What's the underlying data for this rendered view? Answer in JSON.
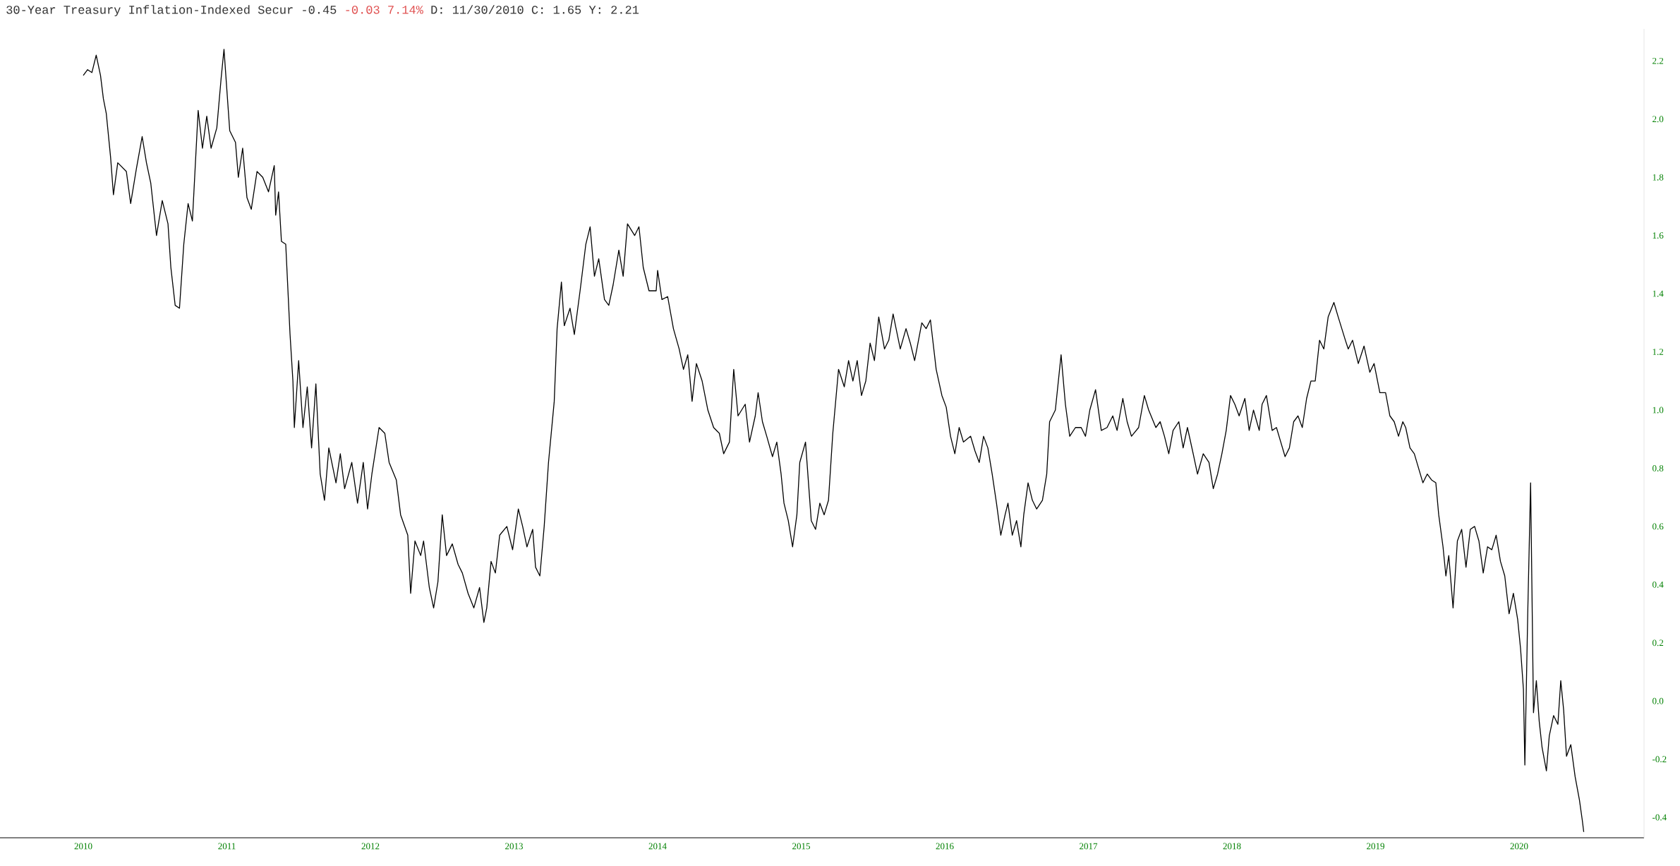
{
  "chart_data": {
    "type": "line",
    "title": "30-Year Treasury Inflation-Indexed Secur -0.45",
    "subtitle": "-0.03 7.14%",
    "annotations": [
      "D: 11/30/2010 C: 1.65 Y: 2.21"
    ],
    "xlim": [
      2009.42,
      2020.87
    ],
    "ylim": [
      -0.47,
      2.31
    ],
    "xticks": [
      2010,
      2011,
      2012,
      2013,
      2014,
      2015,
      2016,
      2017,
      2018,
      2019,
      2020
    ],
    "yticks": [
      -0.4,
      -0.2,
      {
        "value": 0,
        "label": "0.0"
      },
      0.2,
      0.4,
      0.6,
      0.8,
      {
        "value": 1,
        "label": "1.0"
      },
      1.2,
      1.4,
      1.6,
      1.8,
      {
        "value": 2,
        "label": "2.0"
      },
      2.2
    ],
    "series": [
      {
        "color": "#000000",
        "x": [
          2010.0,
          2010.03,
          2010.06,
          2010.09,
          2010.12,
          2010.14,
          2010.16,
          2010.19,
          2010.21,
          2010.24,
          2010.3,
          2010.33,
          2010.37,
          2010.41,
          2010.44,
          2010.47,
          2010.51,
          2010.55,
          2010.59,
          2010.61,
          2010.64,
          2010.67,
          2010.7,
          2010.73,
          2010.76,
          2010.8,
          2010.83,
          2010.86,
          2010.89,
          2010.93,
          2010.96,
          2010.98,
          2011.0,
          2011.02,
          2011.06,
          2011.08,
          2011.11,
          2011.14,
          2011.17,
          2011.21,
          2011.25,
          2011.29,
          2011.33,
          2011.34,
          2011.36,
          2011.38,
          2011.41,
          2011.44,
          2011.46,
          2011.47,
          2011.5,
          2011.53,
          2011.56,
          2011.59,
          2011.62,
          2011.65,
          2011.68,
          2011.71,
          2011.76,
          2011.79,
          2011.82,
          2011.87,
          2011.91,
          2011.95,
          2011.98,
          2012.01,
          2012.06,
          2012.1,
          2012.13,
          2012.18,
          2012.21,
          2012.26,
          2012.28,
          2012.31,
          2012.35,
          2012.37,
          2012.41,
          2012.44,
          2012.47,
          2012.5,
          2012.53,
          2012.57,
          2012.61,
          2012.64,
          2012.68,
          2012.72,
          2012.76,
          2012.79,
          2012.81,
          2012.84,
          2012.87,
          2012.9,
          2012.95,
          2012.99,
          2013.03,
          2013.06,
          2013.09,
          2013.13,
          2013.15,
          2013.18,
          2013.21,
          2013.24,
          2013.28,
          2013.3,
          2013.33,
          2013.35,
          2013.39,
          2013.42,
          2013.46,
          2013.5,
          2013.53,
          2013.56,
          2013.59,
          2013.63,
          2013.66,
          2013.69,
          2013.73,
          2013.76,
          2013.79,
          2013.84,
          2013.87,
          2013.9,
          2013.94,
          2013.99,
          2014.0,
          2014.03,
          2014.07,
          2014.11,
          2014.15,
          2014.18,
          2014.21,
          2014.24,
          2014.27,
          2014.31,
          2014.35,
          2014.39,
          2014.43,
          2014.46,
          2014.5,
          2014.53,
          2014.56,
          2014.61,
          2014.64,
          2014.68,
          2014.7,
          2014.73,
          2014.76,
          2014.8,
          2014.83,
          2014.86,
          2014.88,
          2014.91,
          2014.94,
          2014.97,
          2014.99,
          2015.03,
          2015.07,
          2015.1,
          2015.13,
          2015.16,
          2015.19,
          2015.22,
          2015.26,
          2015.3,
          2015.33,
          2015.36,
          2015.39,
          2015.42,
          2015.45,
          2015.48,
          2015.51,
          2015.54,
          2015.58,
          2015.61,
          2015.64,
          2015.69,
          2015.73,
          2015.76,
          2015.79,
          2015.84,
          2015.87,
          2015.9,
          2015.94,
          2015.98,
          2016.01,
          2016.04,
          2016.07,
          2016.1,
          2016.13,
          2016.18,
          2016.21,
          2016.24,
          2016.27,
          2016.3,
          2016.33,
          2016.36,
          2016.39,
          2016.42,
          2016.44,
          2016.47,
          2016.5,
          2016.53,
          2016.55,
          2016.58,
          2016.61,
          2016.64,
          2016.68,
          2016.71,
          2016.73,
          2016.77,
          2016.81,
          2016.84,
          2016.87,
          2016.91,
          2016.95,
          2016.98,
          2017.01,
          2017.05,
          2017.09,
          2017.13,
          2017.17,
          2017.2,
          2017.24,
          2017.27,
          2017.3,
          2017.35,
          2017.39,
          2017.42,
          2017.47,
          2017.5,
          2017.53,
          2017.56,
          2017.59,
          2017.63,
          2017.66,
          2017.69,
          2017.73,
          2017.76,
          2017.8,
          2017.84,
          2017.87,
          2017.9,
          2017.93,
          2017.96,
          2017.99,
          2018.02,
          2018.05,
          2018.09,
          2018.12,
          2018.15,
          2018.19,
          2018.21,
          2018.24,
          2018.28,
          2018.31,
          2018.34,
          2018.37,
          2018.4,
          2018.43,
          2018.46,
          2018.49,
          2018.52,
          2018.55,
          2018.58,
          2018.61,
          2018.64,
          2018.67,
          2018.71,
          2018.74,
          2018.79,
          2018.81,
          2018.84,
          2018.88,
          2018.92,
          2018.96,
          2018.99,
          2019.03,
          2019.07,
          2019.1,
          2019.13,
          2019.16,
          2019.19,
          2019.21,
          2019.24,
          2019.27,
          2019.3,
          2019.33,
          2019.36,
          2019.39,
          2019.42,
          2019.44,
          2019.47,
          2019.49,
          2019.51,
          2019.54,
          2019.57,
          2019.6,
          2019.63,
          2019.66,
          2019.69,
          2019.72,
          2019.75,
          2019.78,
          2019.81,
          2019.84,
          2019.87,
          2019.9,
          2019.93,
          2019.96,
          2019.99,
          2020.01,
          2020.03,
          2020.04,
          2020.06,
          2020.08,
          2020.1,
          2020.12,
          2020.14,
          2020.16,
          2020.19,
          2020.21,
          2020.24,
          2020.27,
          2020.29,
          2020.31,
          2020.33,
          2020.36,
          2020.39,
          2020.42,
          2020.44,
          2020.45
        ],
        "values": [
          2.15,
          2.17,
          2.16,
          2.22,
          2.15,
          2.07,
          2.02,
          1.87,
          1.74,
          1.85,
          1.82,
          1.71,
          1.83,
          1.94,
          1.85,
          1.78,
          1.6,
          1.72,
          1.64,
          1.49,
          1.36,
          1.35,
          1.57,
          1.71,
          1.65,
          2.03,
          1.9,
          2.01,
          1.9,
          1.97,
          2.14,
          2.24,
          2.1,
          1.96,
          1.92,
          1.8,
          1.9,
          1.73,
          1.69,
          1.82,
          1.8,
          1.75,
          1.84,
          1.67,
          1.75,
          1.58,
          1.57,
          1.26,
          1.1,
          0.94,
          1.17,
          0.94,
          1.08,
          0.87,
          1.09,
          0.78,
          0.69,
          0.87,
          0.75,
          0.85,
          0.73,
          0.82,
          0.68,
          0.82,
          0.66,
          0.78,
          0.94,
          0.92,
          0.82,
          0.76,
          0.64,
          0.57,
          0.37,
          0.55,
          0.5,
          0.55,
          0.39,
          0.32,
          0.41,
          0.64,
          0.5,
          0.54,
          0.47,
          0.44,
          0.37,
          0.32,
          0.39,
          0.27,
          0.32,
          0.48,
          0.44,
          0.57,
          0.6,
          0.52,
          0.66,
          0.6,
          0.53,
          0.59,
          0.46,
          0.43,
          0.6,
          0.82,
          1.03,
          1.28,
          1.44,
          1.29,
          1.35,
          1.26,
          1.41,
          1.57,
          1.63,
          1.46,
          1.52,
          1.38,
          1.36,
          1.43,
          1.55,
          1.46,
          1.64,
          1.6,
          1.63,
          1.49,
          1.41,
          1.41,
          1.48,
          1.38,
          1.39,
          1.28,
          1.21,
          1.14,
          1.19,
          1.03,
          1.16,
          1.1,
          1.0,
          0.94,
          0.92,
          0.85,
          0.89,
          1.14,
          0.98,
          1.02,
          0.89,
          0.98,
          1.06,
          0.96,
          0.91,
          0.84,
          0.89,
          0.78,
          0.68,
          0.62,
          0.53,
          0.64,
          0.82,
          0.89,
          0.62,
          0.59,
          0.68,
          0.64,
          0.69,
          0.92,
          1.14,
          1.08,
          1.17,
          1.1,
          1.17,
          1.05,
          1.1,
          1.23,
          1.17,
          1.32,
          1.21,
          1.24,
          1.33,
          1.21,
          1.28,
          1.23,
          1.17,
          1.3,
          1.28,
          1.31,
          1.14,
          1.05,
          1.01,
          0.91,
          0.85,
          0.94,
          0.89,
          0.91,
          0.86,
          0.82,
          0.91,
          0.87,
          0.78,
          0.68,
          0.57,
          0.64,
          0.68,
          0.57,
          0.62,
          0.53,
          0.64,
          0.75,
          0.69,
          0.66,
          0.69,
          0.78,
          0.96,
          1.0,
          1.19,
          1.02,
          0.91,
          0.94,
          0.94,
          0.91,
          1.0,
          1.07,
          0.93,
          0.94,
          0.98,
          0.93,
          1.04,
          0.96,
          0.91,
          0.94,
          1.05,
          1.0,
          0.94,
          0.96,
          0.91,
          0.85,
          0.93,
          0.96,
          0.87,
          0.94,
          0.85,
          0.78,
          0.85,
          0.82,
          0.73,
          0.78,
          0.85,
          0.93,
          1.05,
          1.02,
          0.98,
          1.04,
          0.93,
          1.0,
          0.93,
          1.02,
          1.05,
          0.93,
          0.94,
          0.89,
          0.84,
          0.87,
          0.96,
          0.98,
          0.94,
          1.04,
          1.1,
          1.1,
          1.24,
          1.21,
          1.32,
          1.37,
          1.32,
          1.24,
          1.21,
          1.24,
          1.16,
          1.22,
          1.13,
          1.16,
          1.06,
          1.06,
          0.98,
          0.96,
          0.91,
          0.96,
          0.94,
          0.87,
          0.85,
          0.8,
          0.75,
          0.78,
          0.76,
          0.75,
          0.64,
          0.53,
          0.43,
          0.5,
          0.32,
          0.55,
          0.59,
          0.46,
          0.59,
          0.6,
          0.55,
          0.44,
          0.53,
          0.52,
          0.57,
          0.48,
          0.43,
          0.3,
          0.37,
          0.28,
          0.18,
          0.04,
          -0.22,
          0.3,
          0.75,
          -0.04,
          0.07,
          -0.07,
          -0.16,
          -0.24,
          -0.12,
          -0.05,
          -0.08,
          0.07,
          -0.03,
          -0.19,
          -0.15,
          -0.26,
          -0.34,
          -0.41,
          -0.45
        ]
      }
    ]
  }
}
